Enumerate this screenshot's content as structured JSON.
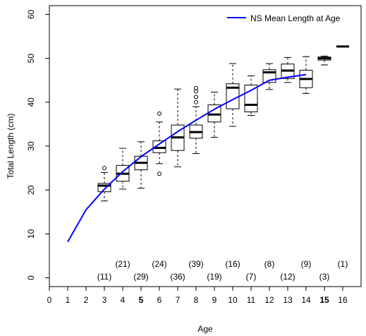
{
  "chart_data": {
    "type": "boxplot",
    "xlabel": "Age",
    "ylabel": "Total Length (cm)",
    "xlim": [
      0,
      17
    ],
    "ylim": [
      -2,
      62
    ],
    "xticks": [
      {
        "value": 0,
        "label": "0",
        "bold": false
      },
      {
        "value": 1,
        "label": "1",
        "bold": false
      },
      {
        "value": 2,
        "label": "2",
        "bold": false
      },
      {
        "value": 3,
        "label": "3",
        "bold": false
      },
      {
        "value": 4,
        "label": "4",
        "bold": false
      },
      {
        "value": 5,
        "label": "5",
        "bold": true
      },
      {
        "value": 6,
        "label": "6",
        "bold": false
      },
      {
        "value": 7,
        "label": "7",
        "bold": false
      },
      {
        "value": 8,
        "label": "8",
        "bold": false
      },
      {
        "value": 9,
        "label": "9",
        "bold": false
      },
      {
        "value": 10,
        "label": "10",
        "bold": false
      },
      {
        "value": 11,
        "label": "11",
        "bold": false
      },
      {
        "value": 12,
        "label": "12",
        "bold": false
      },
      {
        "value": 13,
        "label": "13",
        "bold": false
      },
      {
        "value": 14,
        "label": "14",
        "bold": false
      },
      {
        "value": 15,
        "label": "15",
        "bold": true
      },
      {
        "value": 16,
        "label": "16",
        "bold": false
      }
    ],
    "yticks": [
      {
        "value": 0,
        "label": "0"
      },
      {
        "value": 10,
        "label": "10"
      },
      {
        "value": 20,
        "label": "20"
      },
      {
        "value": 30,
        "label": "30"
      },
      {
        "value": 40,
        "label": "40"
      },
      {
        "value": 50,
        "label": "50"
      },
      {
        "value": 60,
        "label": "60"
      }
    ],
    "boxes": [
      {
        "age": 3,
        "min": 17.5,
        "q1": 19.6,
        "median": 21.0,
        "q3": 21.5,
        "max": 24.0,
        "outliers": [
          25.0
        ]
      },
      {
        "age": 4,
        "min": 20.2,
        "q1": 22.0,
        "median": 23.7,
        "q3": 25.6,
        "max": 29.5,
        "outliers": []
      },
      {
        "age": 5,
        "min": 20.4,
        "q1": 24.6,
        "median": 26.2,
        "q3": 27.7,
        "max": 31.0,
        "outliers": []
      },
      {
        "age": 6,
        "min": 26.0,
        "q1": 28.5,
        "median": 29.6,
        "q3": 31.2,
        "max": 35.5,
        "outliers": [
          37.4,
          23.7
        ]
      },
      {
        "age": 7,
        "min": 25.3,
        "q1": 29.0,
        "median": 32.0,
        "q3": 34.8,
        "max": 43.0,
        "outliers": []
      },
      {
        "age": 8,
        "min": 28.3,
        "q1": 31.8,
        "median": 33.2,
        "q3": 34.8,
        "max": 39.0,
        "outliers": [
          40.0,
          41.2,
          42.5,
          43.2
        ]
      },
      {
        "age": 9,
        "min": 32.0,
        "q1": 35.5,
        "median": 37.2,
        "q3": 39.4,
        "max": 42.3,
        "outliers": []
      },
      {
        "age": 10,
        "min": 34.5,
        "q1": 38.5,
        "median": 43.3,
        "q3": 44.2,
        "max": 48.8,
        "outliers": []
      },
      {
        "age": 11,
        "min": 37.0,
        "q1": 37.8,
        "median": 39.4,
        "q3": 43.9,
        "max": 46.0,
        "outliers": []
      },
      {
        "age": 12,
        "min": 42.9,
        "q1": 44.5,
        "median": 46.8,
        "q3": 47.4,
        "max": 48.8,
        "outliers": []
      },
      {
        "age": 13,
        "min": 44.5,
        "q1": 45.4,
        "median": 47.2,
        "q3": 48.7,
        "max": 50.2,
        "outliers": []
      },
      {
        "age": 14,
        "min": 42.0,
        "q1": 43.3,
        "median": 45.3,
        "q3": 47.3,
        "max": 50.4,
        "outliers": []
      },
      {
        "age": 15,
        "min": 48.5,
        "q1": 49.6,
        "median": 50.0,
        "q3": 50.3,
        "max": 50.5,
        "outliers": []
      },
      {
        "age": 16,
        "min": 52.7,
        "q1": 52.7,
        "median": 52.7,
        "q3": 52.7,
        "max": 52.7,
        "outliers": []
      }
    ],
    "series": [
      {
        "name": "NS Mean Length at Age",
        "color": "#0000ff",
        "x": [
          1,
          2,
          3,
          4,
          5,
          6,
          7,
          8,
          9,
          10,
          11,
          12,
          13,
          14
        ],
        "y": [
          8.2,
          15.5,
          20.2,
          24.2,
          27.6,
          30.5,
          33.3,
          35.9,
          38.4,
          40.6,
          42.7,
          45.0,
          45.7,
          46.3
        ]
      }
    ],
    "counts": [
      {
        "age": 3,
        "label": "(11)",
        "row": "lower"
      },
      {
        "age": 4,
        "label": "(21)",
        "row": "upper"
      },
      {
        "age": 5,
        "label": "(29)",
        "row": "lower"
      },
      {
        "age": 6,
        "label": "(24)",
        "row": "upper"
      },
      {
        "age": 7,
        "label": "(36)",
        "row": "lower"
      },
      {
        "age": 8,
        "label": "(39)",
        "row": "upper"
      },
      {
        "age": 9,
        "label": "(19)",
        "row": "lower"
      },
      {
        "age": 10,
        "label": "(16)",
        "row": "upper"
      },
      {
        "age": 11,
        "label": "(7)",
        "row": "lower"
      },
      {
        "age": 12,
        "label": "(8)",
        "row": "upper"
      },
      {
        "age": 13,
        "label": "(12)",
        "row": "lower"
      },
      {
        "age": 14,
        "label": "(9)",
        "row": "upper"
      },
      {
        "age": 15,
        "label": "(3)",
        "row": "lower"
      },
      {
        "age": 16,
        "label": "(1)",
        "row": "upper"
      }
    ],
    "legend": {
      "position": "top-right",
      "label": "NS Mean Length at Age",
      "color": "#0000ff"
    },
    "grid": false
  }
}
